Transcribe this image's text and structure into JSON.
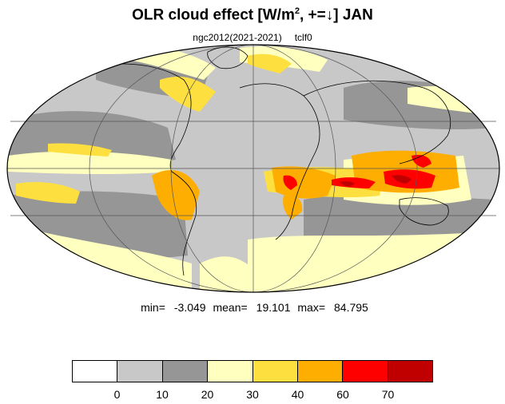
{
  "title": {
    "prefix": "OLR cloud effect [W/m",
    "superscript": "2",
    "suffix": ", +=↓]  JAN"
  },
  "subtitle": {
    "run": "ngc2012(2021-2021)",
    "variable": "tclf0"
  },
  "stats": {
    "min_label": "min=",
    "min_value": "-3.049",
    "mean_label": "mean=",
    "mean_value": "19.101",
    "max_label": "max=",
    "max_value": "84.795"
  },
  "colorbar": {
    "colors": [
      "#ffffff",
      "#c8c8c8",
      "#969696",
      "#ffffc0",
      "#fde040",
      "#fdae00",
      "#ff0000",
      "#c00000"
    ],
    "ticks": [
      "0",
      "10",
      "20",
      "30",
      "40",
      "60",
      "70"
    ]
  },
  "map": {
    "projection": "mollweide",
    "ocean_fill": "#c8c8c8",
    "outline_color": "#000000"
  }
}
